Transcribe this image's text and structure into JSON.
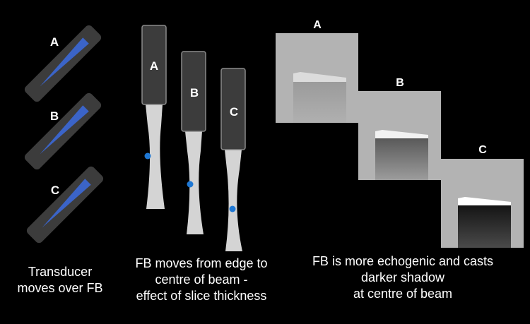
{
  "colors": {
    "background": "#000000",
    "probe": "#3c3c3c",
    "probe_border": "#8a8a8a",
    "beam_blue": "#3b64c8",
    "beam_gray": "#d4d4d4",
    "fb_dot": "#1f78d4",
    "us_bg": "#b3b3b3",
    "text": "#ffffff"
  },
  "left_panel": {
    "probes": [
      {
        "label": "A"
      },
      {
        "label": "B"
      },
      {
        "label": "C"
      }
    ],
    "caption": [
      "Transducer",
      "moves over FB"
    ]
  },
  "middle_panel": {
    "transducers": [
      {
        "label": "A"
      },
      {
        "label": "B"
      },
      {
        "label": "C"
      }
    ],
    "caption": [
      "FB moves from edge to",
      "centre of beam -",
      "effect of slice thickness"
    ]
  },
  "right_panel": {
    "images": [
      {
        "label": "A"
      },
      {
        "label": "B"
      },
      {
        "label": "C"
      }
    ],
    "caption": [
      "FB is more echogenic and casts",
      "darker shadow",
      "at centre of beam"
    ]
  }
}
